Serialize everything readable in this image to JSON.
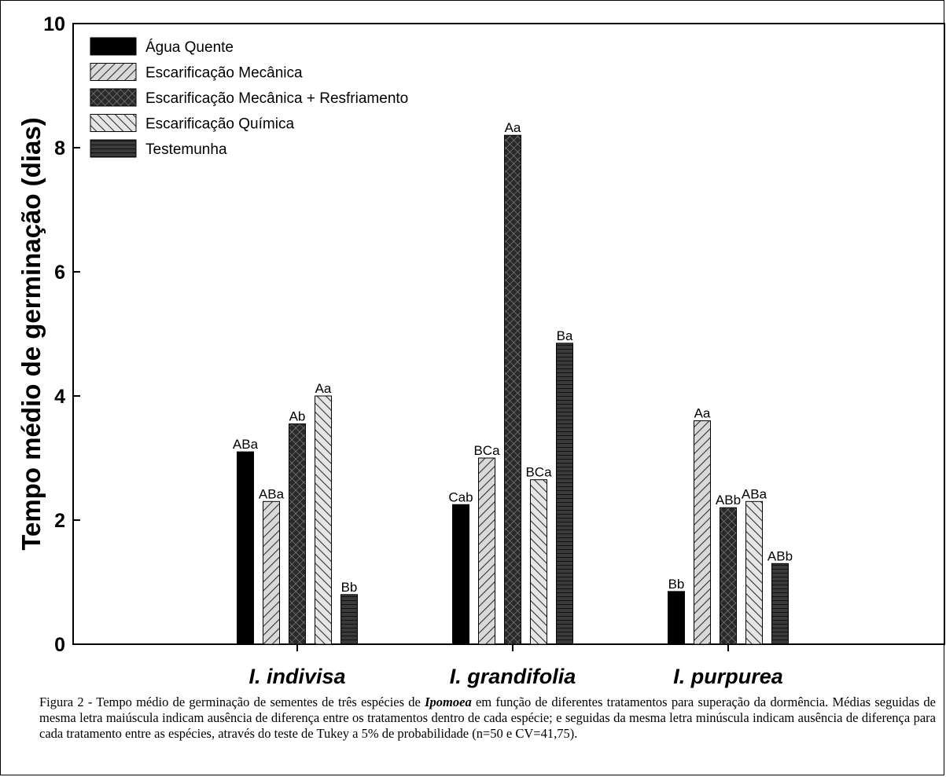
{
  "chart_data": {
    "type": "bar",
    "ylabel": "Tempo médio de germinação (dias)",
    "xlabel": "",
    "ylim": [
      0,
      10
    ],
    "yticks": [
      "0",
      "2",
      "4",
      "6",
      "8",
      "10"
    ],
    "ytick_values": [
      0,
      2,
      4,
      6,
      8,
      10
    ],
    "categories": [
      "I. indivisa",
      "I. grandifolia",
      "I. purpurea"
    ],
    "legend_position": "top-left",
    "series": [
      {
        "name": "Água Quente",
        "pattern": "solid",
        "values": [
          3.1,
          2.25,
          0.85
        ],
        "labels": [
          "ABa",
          "Cab",
          "Bb"
        ]
      },
      {
        "name": "Escarificação Mecânica",
        "pattern": "diag-right",
        "values": [
          2.3,
          3.0,
          3.6
        ],
        "labels": [
          "ABa",
          "BCa",
          "Aa"
        ]
      },
      {
        "name": "Escarificação Mecânica + Resfriamento",
        "pattern": "crosshatch",
        "values": [
          3.55,
          8.2,
          2.2
        ],
        "labels": [
          "Ab",
          "Aa",
          "ABb"
        ]
      },
      {
        "name": "Escarificação Química",
        "pattern": "diag-left",
        "values": [
          4.0,
          2.65,
          2.3
        ],
        "labels": [
          "Aa",
          "BCa",
          "ABa"
        ]
      },
      {
        "name": "Testemunha",
        "pattern": "horizontal",
        "values": [
          0.8,
          4.85,
          1.3
        ],
        "labels": [
          "Bb",
          "Ba",
          "ABb"
        ]
      }
    ],
    "colors": {
      "bar_dark": "#1a1a1a",
      "bar_light": "#d9d9d9",
      "bar_mid": "#3a3a3a"
    }
  },
  "caption": {
    "prefix": "Figura 2 - Tempo médio de germinação de sementes de três espécies de",
    "genus": "Ipomoea",
    "rest": "em função de diferentes tratamentos para superação da dormência. Médias seguidas de mesma letra maiúscula indicam ausência de diferença entre os tratamentos dentro de cada espécie; e seguidas da mesma letra minúscula indicam ausência de diferença para cada tratamento entre as espécies, através do teste de Tukey a 5% de probabilidade (n=50 e CV=41,75)."
  }
}
